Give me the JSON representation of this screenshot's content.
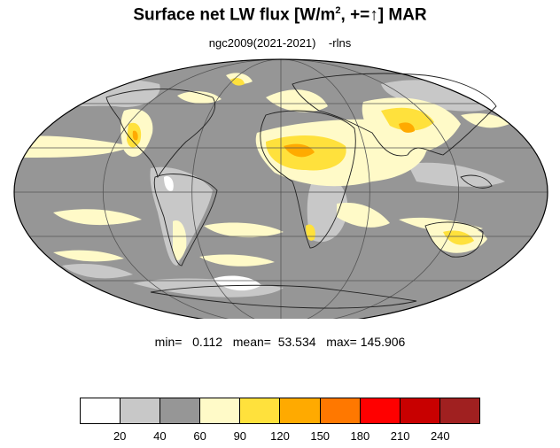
{
  "title": {
    "main": "Surface net LW flux [W/m",
    "sup": "2",
    "rest": ", +=↑]  MAR"
  },
  "subtitle": "ngc2009(2021-2021)    -rlns",
  "stats": "min=   0.112   mean=  53.534   max= 145.906",
  "colorbar": {
    "colors": [
      "#ffffff",
      "#c8c8c8",
      "#969696",
      "#fffac8",
      "#ffe13c",
      "#ffaa00",
      "#ff7800",
      "#ff0000",
      "#c80000",
      "#a02020"
    ],
    "labels": [
      "20",
      "40",
      "60",
      "90",
      "120",
      "150",
      "180",
      "210",
      "240"
    ]
  },
  "map": {
    "projection": "Mollweide",
    "ocean_color": "#969696",
    "land_light_color": "#c8c8c8",
    "band_color": "#fffac8",
    "hot_color": "#ffe13c",
    "hotter_color": "#ffaa00",
    "ice_color": "#ffffff"
  }
}
